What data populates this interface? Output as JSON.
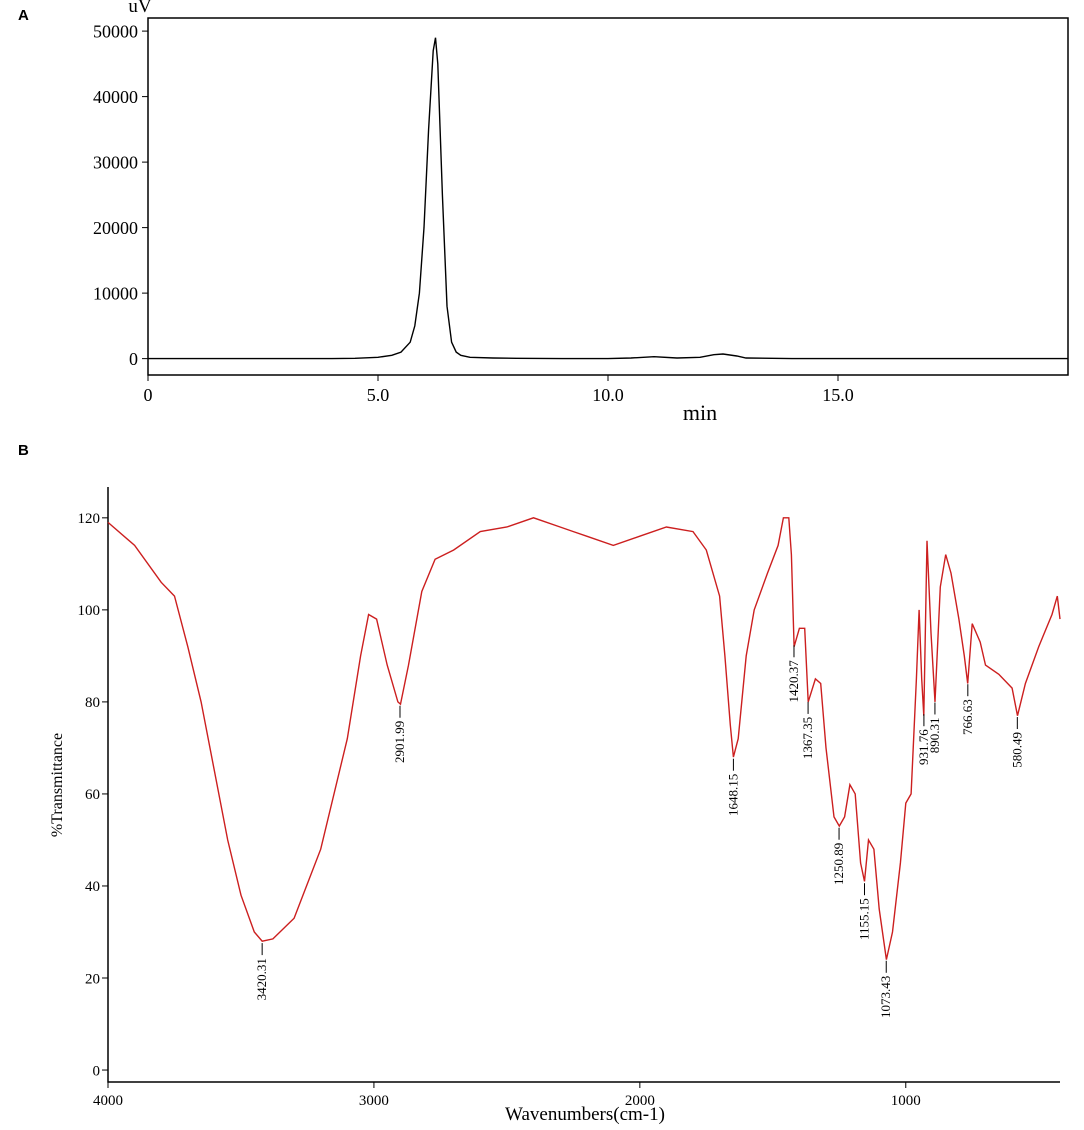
{
  "chart_data": [
    {
      "type": "line",
      "panel_label": "A",
      "y_label": "uV",
      "x_label": "min",
      "color": "#000000",
      "frame": true,
      "x": [
        0,
        1,
        2,
        3,
        4,
        4.5,
        5,
        5.3,
        5.5,
        5.7,
        5.8,
        5.9,
        6.0,
        6.1,
        6.2,
        6.25,
        6.3,
        6.4,
        6.5,
        6.6,
        6.7,
        6.8,
        7.0,
        7.5,
        8,
        9,
        10,
        10.5,
        11,
        11.5,
        12,
        12.3,
        12.5,
        12.8,
        13,
        14,
        15,
        16,
        17,
        18,
        19,
        20
      ],
      "values": [
        0,
        0,
        0,
        0,
        0,
        50,
        200,
        500,
        1000,
        2500,
        5000,
        10000,
        20000,
        35000,
        47000,
        49000,
        45000,
        25000,
        8000,
        2500,
        1000,
        500,
        200,
        100,
        50,
        0,
        0,
        100,
        300,
        100,
        200,
        600,
        700,
        400,
        100,
        0,
        0,
        0,
        0,
        0,
        0,
        0
      ],
      "xlim": [
        0,
        20
      ],
      "xticks": [
        0,
        {
          "value": 5,
          "label": "5.0"
        },
        {
          "value": 10,
          "label": "10.0"
        },
        {
          "value": 15,
          "label": "15.0"
        }
      ],
      "ylim": [
        -2500,
        52000
      ],
      "yticks": [
        0,
        10000,
        20000,
        30000,
        40000,
        50000
      ]
    },
    {
      "type": "line",
      "panel_label": "B",
      "y_label": "%Transmittance",
      "x_label": "Wavenumbers(cm-1)",
      "color": "#cc1f1f",
      "frame": false,
      "x": [
        4000,
        3900,
        3800,
        3750,
        3700,
        3650,
        3600,
        3550,
        3500,
        3450,
        3420,
        3380,
        3300,
        3200,
        3100,
        3050,
        3020,
        2990,
        2950,
        2910,
        2900,
        2870,
        2820,
        2770,
        2700,
        2600,
        2500,
        2400,
        2300,
        2250,
        2200,
        2100,
        2000,
        1900,
        1800,
        1750,
        1700,
        1680,
        1660,
        1648,
        1630,
        1600,
        1570,
        1520,
        1480,
        1460,
        1440,
        1430,
        1420,
        1400,
        1380,
        1367,
        1340,
        1320,
        1300,
        1270,
        1250,
        1230,
        1210,
        1190,
        1170,
        1155,
        1140,
        1120,
        1100,
        1073,
        1050,
        1020,
        1000,
        980,
        960,
        950,
        940,
        932,
        920,
        905,
        890,
        870,
        850,
        830,
        800,
        780,
        767,
        750,
        720,
        700,
        650,
        600,
        580,
        550,
        500,
        450,
        430,
        420
      ],
      "values": [
        119,
        114,
        106,
        103,
        92,
        80,
        65,
        50,
        38,
        30,
        28,
        28.5,
        33,
        48,
        72,
        90,
        99,
        98,
        88,
        80,
        79.5,
        88,
        104,
        111,
        113,
        117,
        118,
        120,
        118,
        117,
        116,
        114,
        116,
        118,
        117,
        113,
        103,
        90,
        75,
        68,
        72,
        90,
        100,
        108,
        114,
        120,
        120,
        112,
        92,
        96,
        96,
        80,
        85,
        84,
        70,
        55,
        53,
        55,
        62,
        60,
        45,
        41,
        50,
        48,
        35,
        24,
        30,
        45,
        58,
        60,
        85,
        100,
        85,
        77,
        115,
        95,
        80,
        105,
        112,
        108,
        98,
        90,
        84,
        97,
        93,
        88,
        86,
        83,
        77,
        84,
        92,
        99,
        103,
        98
      ],
      "peak_labels": [
        3420.31,
        2901.99,
        1648.15,
        1420.37,
        1367.35,
        1250.89,
        1155.15,
        1073.43,
        931.76,
        890.31,
        766.63,
        580.49
      ],
      "xlim": [
        4000,
        420
      ],
      "xticks": [
        4000,
        3000,
        2000,
        1000
      ],
      "ylim": [
        -2.6,
        126.7
      ],
      "yticks": [
        0,
        20,
        40,
        60,
        80,
        100,
        120
      ]
    }
  ]
}
